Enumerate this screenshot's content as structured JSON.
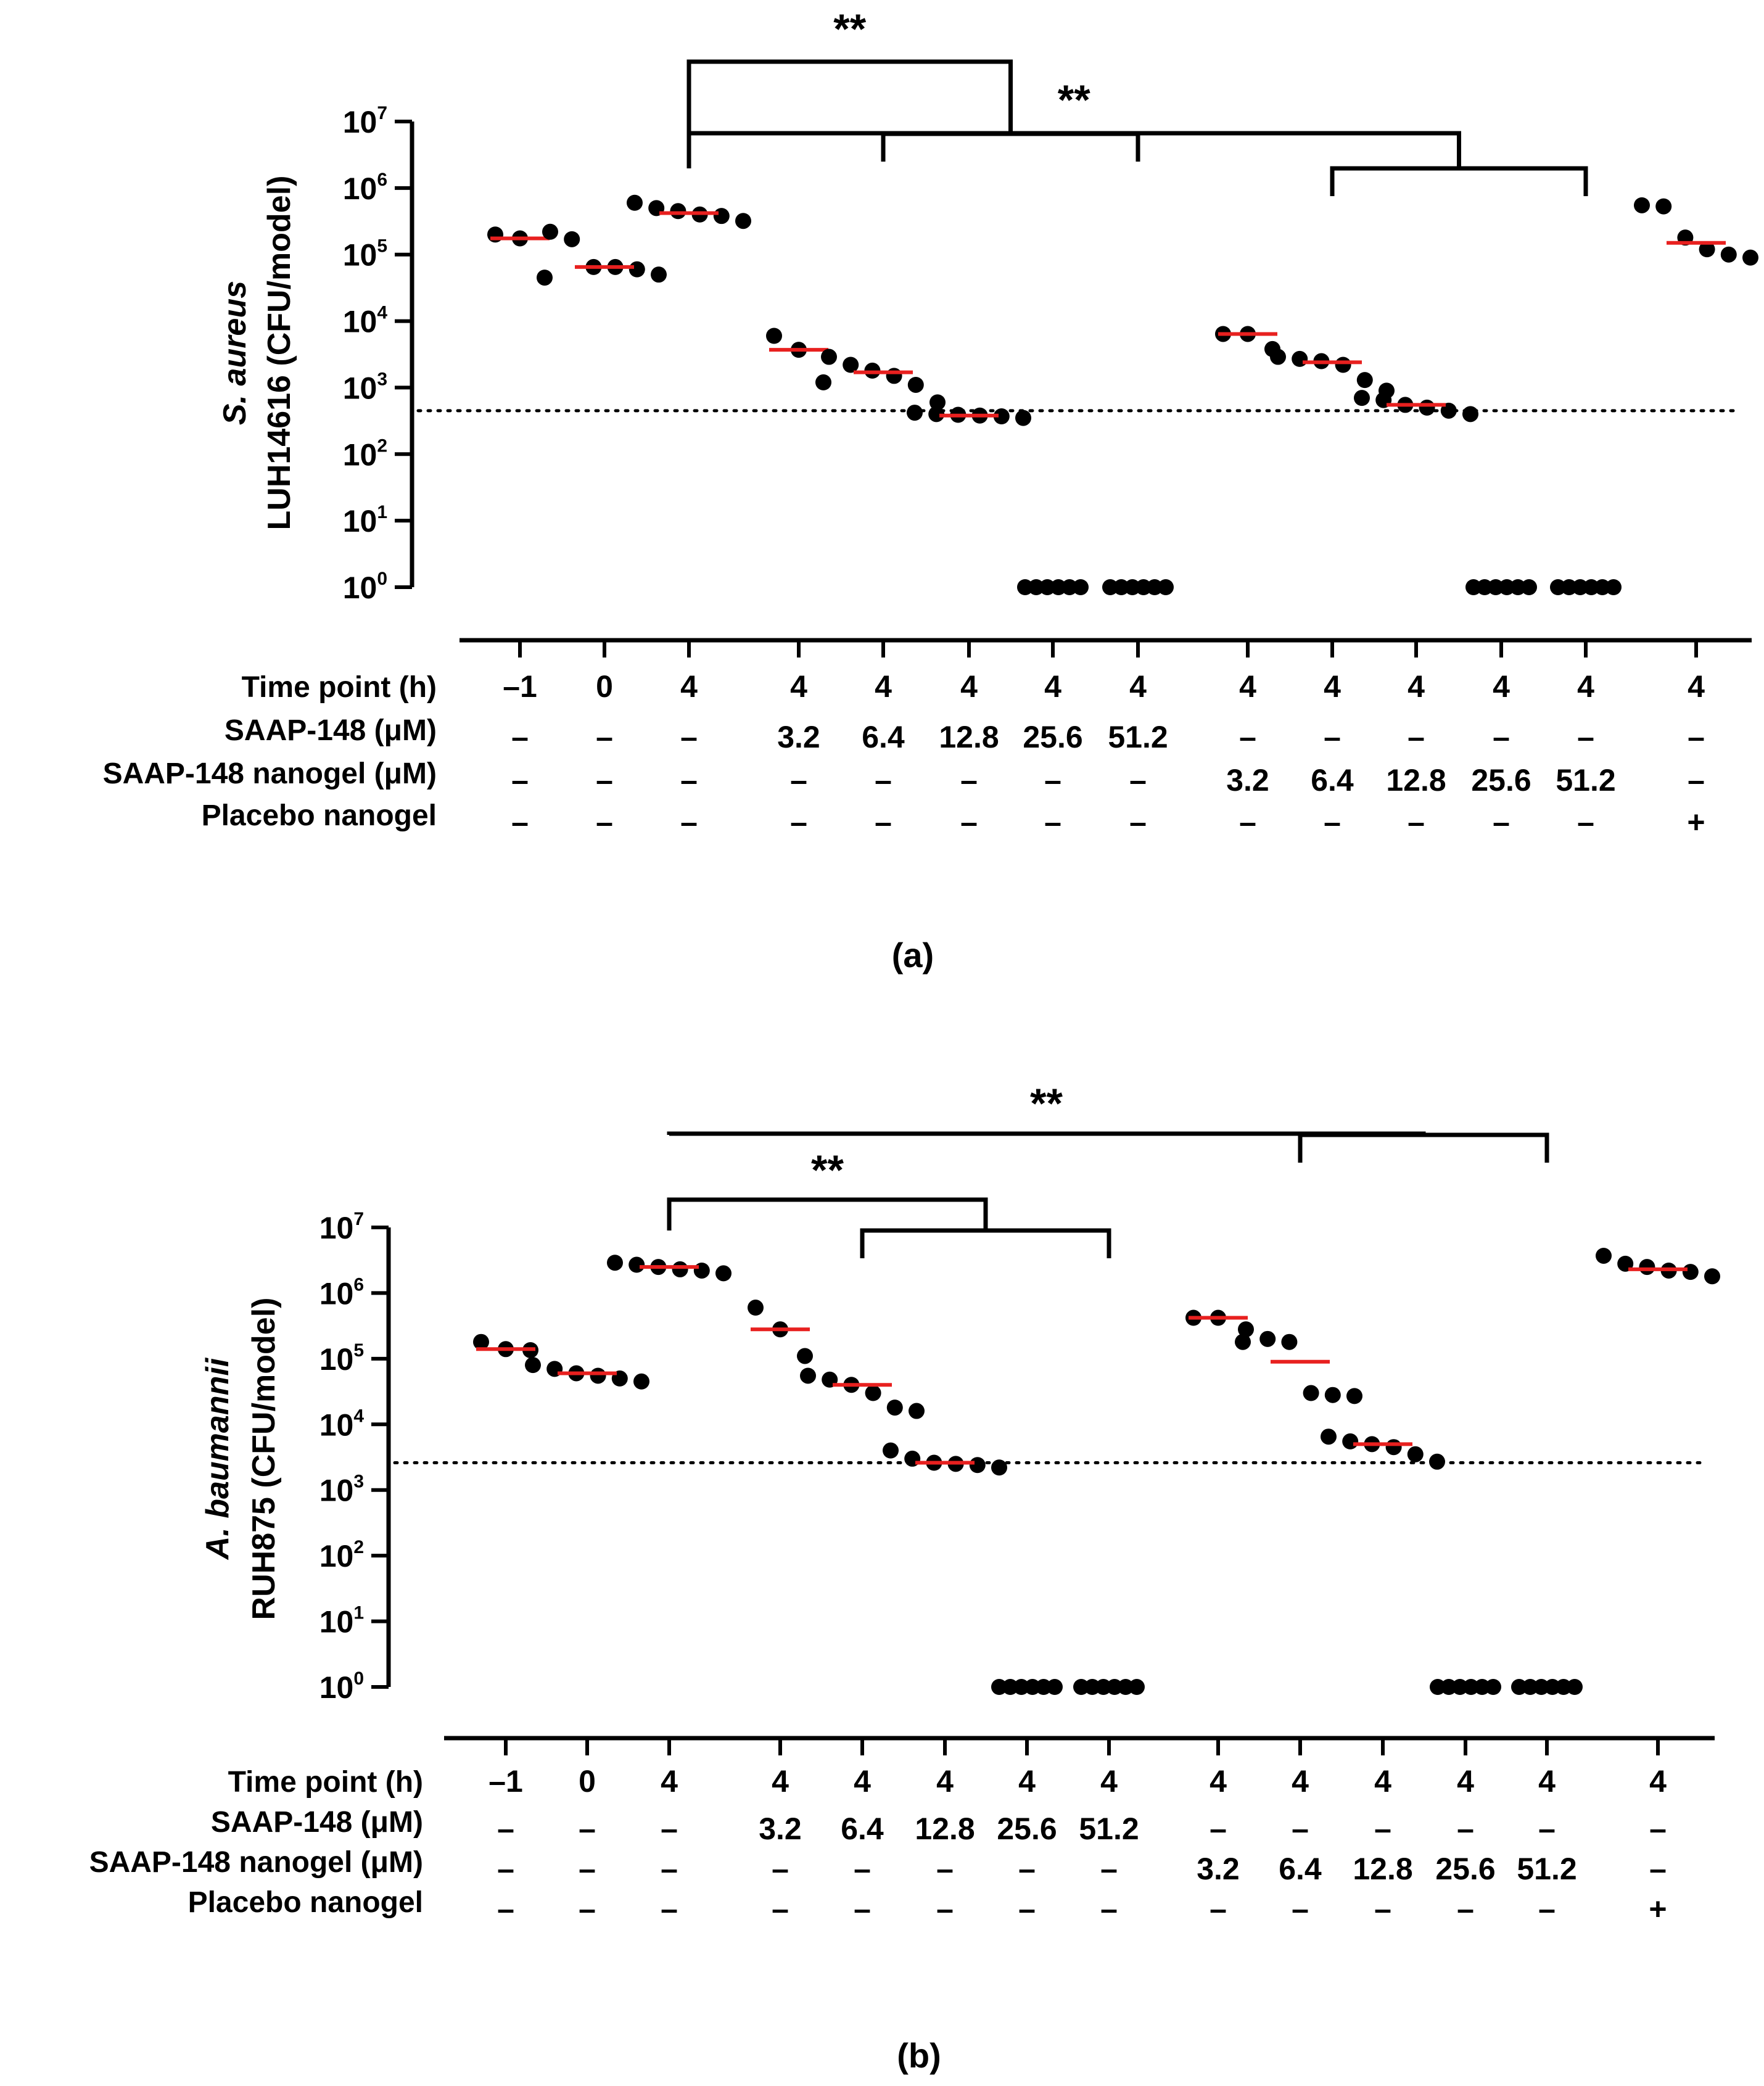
{
  "figure": {
    "caption_a": "(a)",
    "caption_b": "(b)"
  },
  "table": {
    "row_labels": [
      "Time point (h)",
      "SAAP-148 (μM)",
      "SAAP-148 nanogel (μM)",
      "Placebo nanogel"
    ],
    "rows": [
      [
        "–1",
        "0",
        "4",
        "4",
        "4",
        "4",
        "4",
        "4",
        "4",
        "4",
        "4",
        "4",
        "4",
        "4"
      ],
      [
        "–",
        "–",
        "–",
        "3.2",
        "6.4",
        "12.8",
        "25.6",
        "51.2",
        "–",
        "–",
        "–",
        "–",
        "–",
        "–"
      ],
      [
        "–",
        "–",
        "–",
        "–",
        "–",
        "–",
        "–",
        "–",
        "3.2",
        "6.4",
        "12.8",
        "25.6",
        "51.2",
        "–"
      ],
      [
        "–",
        "–",
        "–",
        "–",
        "–",
        "–",
        "–",
        "–",
        "–",
        "–",
        "–",
        "–",
        "–",
        "+"
      ]
    ]
  },
  "chart_data": [
    {
      "type": "scatter",
      "panel": "a",
      "ylabel_italic": "S. aureus",
      "ylabel": "LUH14616 (CFU/model)",
      "yscale": "log10",
      "ylim": [
        1,
        10000000
      ],
      "ytick_base": "10",
      "ytick_exponents": [
        "0",
        "1",
        "2",
        "3",
        "4",
        "5",
        "6",
        "7"
      ],
      "detection_limit": 450,
      "median_color": "#e8201f",
      "groups": [
        {
          "points": [
            200000,
            175000,
            45000
          ],
          "median": 175000
        },
        {
          "points": [
            220000,
            170000,
            65000,
            65000,
            60000,
            50000
          ],
          "median": 65000
        },
        {
          "points": [
            600000,
            500000,
            450000,
            400000,
            380000,
            320000
          ],
          "median": 420000
        },
        {
          "points": [
            6000,
            3700,
            1200
          ],
          "median": 3700
        },
        {
          "points": [
            2900,
            2200,
            1800,
            1500,
            1100,
            600
          ],
          "median": 1700
        },
        {
          "points": [
            420,
            400,
            390,
            380,
            370,
            350
          ],
          "median": 380
        },
        {
          "points": [
            1,
            1,
            1,
            1,
            1,
            1
          ],
          "median": 1
        },
        {
          "points": [
            1,
            1,
            1,
            1,
            1,
            1
          ],
          "median": 1
        },
        {
          "points": [
            6400,
            6400,
            3800
          ],
          "median": 6400
        },
        {
          "points": [
            2900,
            2700,
            2500,
            2200,
            1300,
            900
          ],
          "median": 2400
        },
        {
          "points": [
            700,
            650,
            550,
            500,
            450,
            400
          ],
          "median": 550
        },
        {
          "points": [
            1,
            1,
            1,
            1,
            1,
            1
          ],
          "median": 1
        },
        {
          "points": [
            1,
            1,
            1,
            1,
            1,
            1
          ],
          "median": 1
        },
        {
          "points": [
            550000,
            530000,
            180000,
            120000,
            100000,
            90000
          ],
          "median": 150000
        }
      ],
      "significance": [
        {
          "label": "**",
          "from": 2,
          "to_range": [
            4,
            7
          ]
        },
        {
          "label": "**",
          "from": 2,
          "to_range": [
            9,
            12
          ]
        }
      ]
    },
    {
      "type": "scatter",
      "panel": "b",
      "ylabel_italic": "A. baumannii",
      "ylabel": "RUH875 (CFU/model)",
      "yscale": "log10",
      "ylim": [
        1,
        10000000
      ],
      "ytick_base": "10",
      "ytick_exponents": [
        "0",
        "1",
        "2",
        "3",
        "4",
        "5",
        "6",
        "7"
      ],
      "detection_limit": 2600,
      "median_color": "#e8201f",
      "groups": [
        {
          "points": [
            180000,
            140000,
            135000
          ],
          "median": 140000
        },
        {
          "points": [
            80000,
            70000,
            60000,
            55000,
            50000,
            45000
          ],
          "median": 60000
        },
        {
          "points": [
            2900000,
            2700000,
            2500000,
            2300000,
            2200000,
            2000000
          ],
          "median": 2500000
        },
        {
          "points": [
            600000,
            280000,
            110000
          ],
          "median": 280000
        },
        {
          "points": [
            55000,
            48000,
            40000,
            30000,
            18000,
            16000
          ],
          "median": 40000
        },
        {
          "points": [
            4000,
            3000,
            2600,
            2500,
            2400,
            2200
          ],
          "median": 2600
        },
        {
          "points": [
            1,
            1,
            1,
            1,
            1,
            1
          ],
          "median": 1
        },
        {
          "points": [
            1,
            1,
            1,
            1,
            1,
            1
          ],
          "median": 1
        },
        {
          "points": [
            420000,
            420000,
            180000
          ],
          "median": 420000
        },
        {
          "points": [
            280000,
            200000,
            180000,
            30000,
            28000,
            27000
          ],
          "median": 90000
        },
        {
          "points": [
            6500,
            5500,
            5000,
            4500,
            3500,
            2700
          ],
          "median": 5000
        },
        {
          "points": [
            1,
            1,
            1,
            1,
            1,
            1
          ],
          "median": 1
        },
        {
          "points": [
            1,
            1,
            1,
            1,
            1,
            1
          ],
          "median": 1
        },
        {
          "points": [
            3700000,
            2800000,
            2500000,
            2200000,
            2100000,
            1800000
          ],
          "median": 2300000
        }
      ],
      "significance": [
        {
          "label": "**",
          "from": 2,
          "to_range": [
            4,
            7
          ]
        },
        {
          "label": "**",
          "from": 2,
          "to_range": [
            9,
            12
          ]
        }
      ]
    }
  ]
}
